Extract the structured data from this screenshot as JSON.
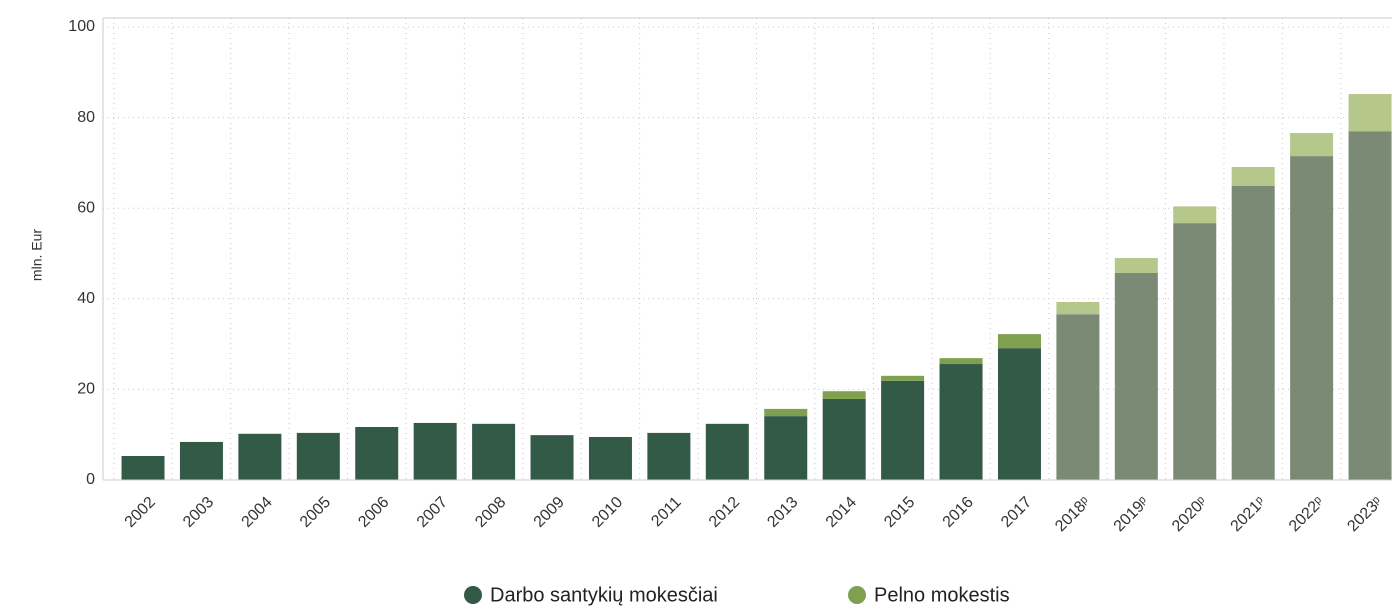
{
  "chart_data": {
    "type": "stacked_bar",
    "y_label": "mln. Eur",
    "categories": [
      "2002",
      "2003",
      "2004",
      "2005",
      "2006",
      "2007",
      "2008",
      "2009",
      "2010",
      "2011",
      "2012",
      "2013",
      "2014",
      "2015",
      "2016",
      "2017",
      "2018ᵖ",
      "2019ᵖ",
      "2020ᵖ",
      "2021ᵖ",
      "2022ᵖ",
      "2023ᵖ"
    ],
    "series": [
      {
        "name": "Darbo santykių mokesčiai",
        "color": "#335a47",
        "colors": [
          "#335a47",
          "#335a47",
          "#335a47",
          "#335a47",
          "#335a47",
          "#335a47",
          "#335a47",
          "#335a47",
          "#335a47",
          "#335a47",
          "#335a47",
          "#335a47",
          "#335a47",
          "#335a47",
          "#335a47",
          "#335a47",
          "#7a8a75",
          "#7a8a75",
          "#7a8a75",
          "#7a8a75",
          "#7a8a75",
          "#7a8a75"
        ],
        "values": [
          5.3,
          8.4,
          10.2,
          10.4,
          11.7,
          12.6,
          12.4,
          9.9,
          9.5,
          10.4,
          12.4,
          14.1,
          17.9,
          21.9,
          25.6,
          29.1,
          36.6,
          45.7,
          56.7,
          64.9,
          71.5,
          77.0
        ]
      },
      {
        "name": "Pelno mokestis",
        "color": "#7fa04e",
        "colors": [
          "#7fa04e",
          "#7fa04e",
          "#7fa04e",
          "#7fa04e",
          "#7fa04e",
          "#7fa04e",
          "#7fa04e",
          "#7fa04e",
          "#7fa04e",
          "#7fa04e",
          "#7fa04e",
          "#7fa04e",
          "#7fa04e",
          "#7fa04e",
          "#7fa04e",
          "#7fa04e",
          "#b5c78a",
          "#b5c78a",
          "#b5c78a",
          "#b5c78a",
          "#b5c78a",
          "#b5c78a"
        ],
        "values": [
          0,
          0,
          0,
          0,
          0,
          0,
          0,
          0,
          0,
          0,
          0,
          1.6,
          1.7,
          1.1,
          1.3,
          3.1,
          2.7,
          3.3,
          3.7,
          4.2,
          5.1,
          8.2
        ]
      }
    ],
    "ylim": [
      0,
      100
    ],
    "yticks": [
      0,
      20,
      40,
      60,
      80,
      100
    ],
    "grid": true
  }
}
